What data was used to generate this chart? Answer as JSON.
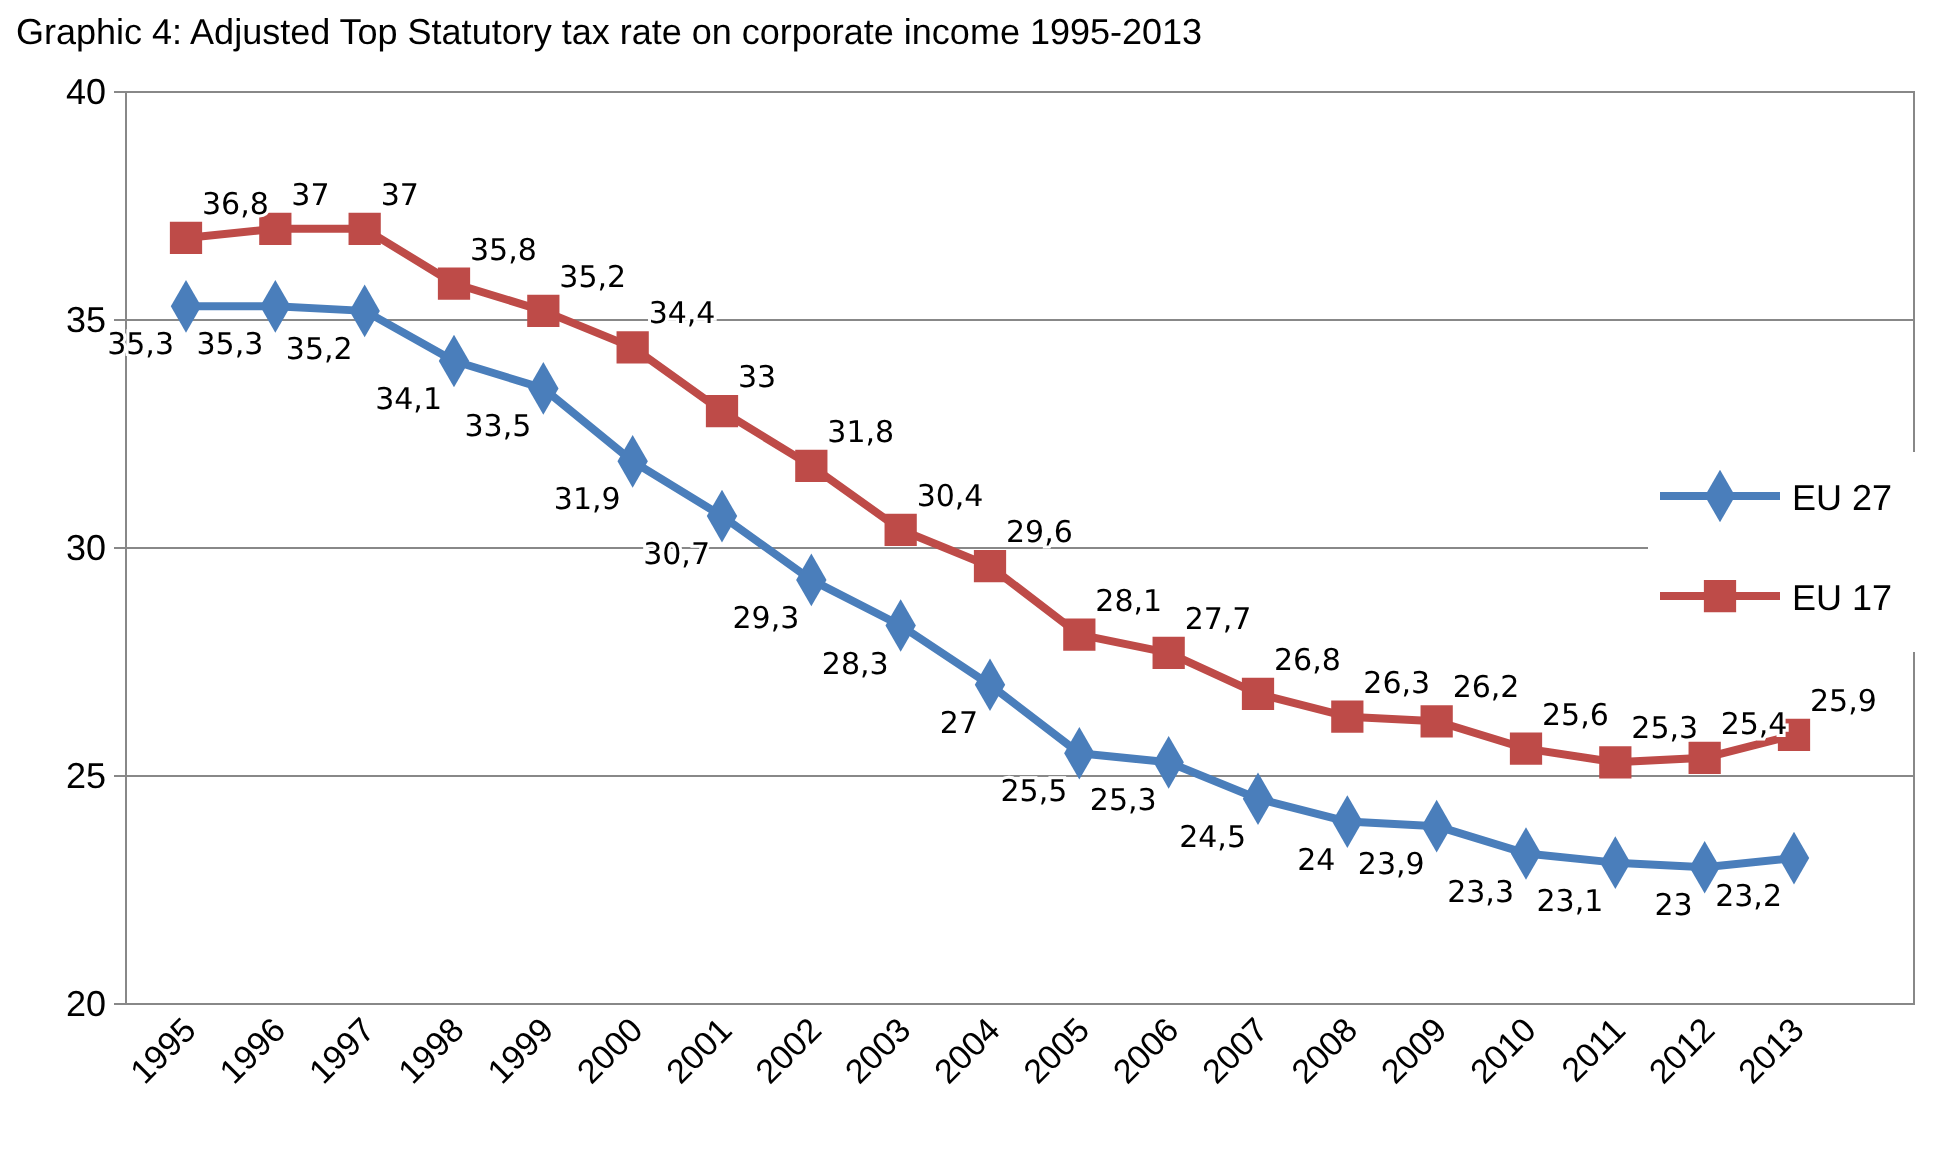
{
  "chart_data": {
    "type": "line",
    "title": "Graphic 4: Adjusted Top Statutory tax rate on corporate income 1995-2013",
    "categories": [
      "1995",
      "1996",
      "1997",
      "1998",
      "1999",
      "2000",
      "2001",
      "2002",
      "2003",
      "2004",
      "2005",
      "2006",
      "2007",
      "2008",
      "2009",
      "2010",
      "2011",
      "2012",
      "2013"
    ],
    "series": [
      {
        "name": "EU 27",
        "color": "#4a7ebb",
        "marker": "diamond",
        "values": [
          35.3,
          35.3,
          35.2,
          34.1,
          33.5,
          31.9,
          30.7,
          29.3,
          28.3,
          27,
          25.5,
          25.3,
          24.5,
          24,
          23.9,
          23.3,
          23.1,
          23,
          23.2
        ],
        "value_labels": [
          "35,3",
          "35,3",
          "35,2",
          "34,1",
          "33,5",
          "31,9",
          "30,7",
          "29,3",
          "28,3",
          "27",
          "25,5",
          "25,3",
          "24,5",
          "24",
          "23,9",
          "23,3",
          "23,1",
          "23",
          "23,2"
        ]
      },
      {
        "name": "EU 17",
        "color": "#be4b48",
        "marker": "square",
        "values": [
          36.8,
          37,
          37,
          35.8,
          35.2,
          34.4,
          33,
          31.8,
          30.4,
          29.6,
          28.1,
          27.7,
          26.8,
          26.3,
          26.2,
          25.6,
          25.3,
          25.4,
          25.9
        ],
        "value_labels": [
          "36,8",
          "37",
          "37",
          "35,8",
          "35,2",
          "34,4",
          "33",
          "31,8",
          "30,4",
          "29,6",
          "28,1",
          "27,7",
          "26,8",
          "26,3",
          "26,2",
          "25,6",
          "25,3",
          "25,4",
          "25,9"
        ]
      }
    ],
    "ylim": [
      20,
      40
    ],
    "yticks": [
      20,
      25,
      30,
      35,
      40
    ],
    "grid": "y",
    "legend": "right",
    "line_style": "solid"
  }
}
